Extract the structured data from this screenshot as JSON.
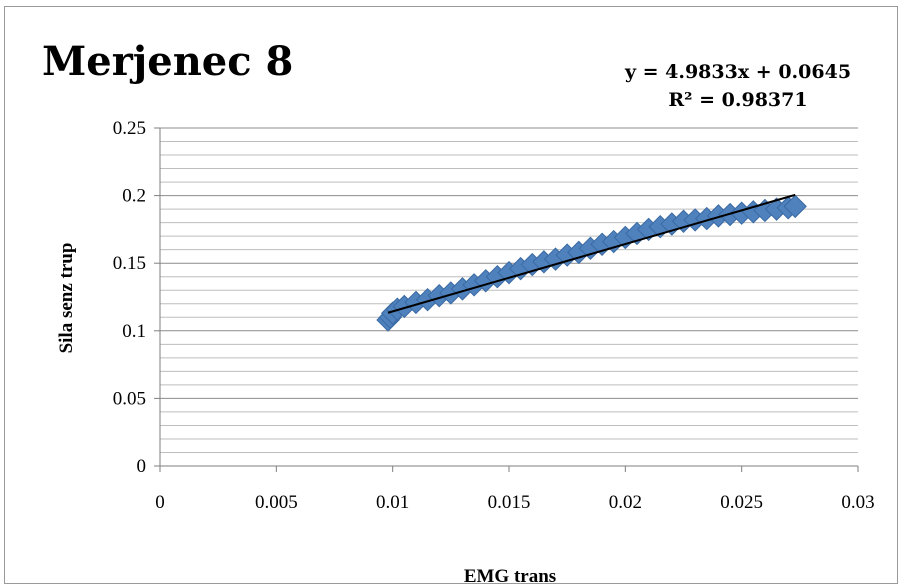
{
  "chart_data": {
    "type": "scatter",
    "title": "Merjenec 8",
    "xlabel": "EMG trans",
    "ylabel": "Sila senz trup",
    "xlim": [
      0,
      0.03
    ],
    "ylim": [
      0,
      0.25
    ],
    "x_ticks": [
      "0",
      "0.005",
      "0.01",
      "0.015",
      "0.02",
      "0.025",
      "0.03"
    ],
    "y_ticks": [
      "0",
      "0.05",
      "0.1",
      "0.15",
      "0.2",
      "0.25"
    ],
    "grid": true,
    "marker_color": "#4f81bd",
    "trendline": {
      "slope": 4.9833,
      "intercept": 0.0645,
      "r2": 0.98371,
      "equation_label": "y = 4.9833x + 0.0645",
      "r2_label": "R² = 0.98371",
      "color": "#000000"
    },
    "series": [
      {
        "points": [
          [
            0.0098,
            0.108
          ],
          [
            0.0099,
            0.11
          ],
          [
            0.01,
            0.113
          ],
          [
            0.0102,
            0.116
          ],
          [
            0.0105,
            0.118
          ],
          [
            0.011,
            0.121
          ],
          [
            0.0115,
            0.123
          ],
          [
            0.012,
            0.126
          ],
          [
            0.0125,
            0.128
          ],
          [
            0.013,
            0.131
          ],
          [
            0.0135,
            0.134
          ],
          [
            0.014,
            0.137
          ],
          [
            0.0145,
            0.14
          ],
          [
            0.015,
            0.143
          ],
          [
            0.0155,
            0.146
          ],
          [
            0.016,
            0.149
          ],
          [
            0.0165,
            0.151
          ],
          [
            0.017,
            0.153
          ],
          [
            0.0175,
            0.156
          ],
          [
            0.018,
            0.158
          ],
          [
            0.0185,
            0.161
          ],
          [
            0.019,
            0.164
          ],
          [
            0.0195,
            0.166
          ],
          [
            0.02,
            0.169
          ],
          [
            0.0205,
            0.172
          ],
          [
            0.021,
            0.175
          ],
          [
            0.0215,
            0.177
          ],
          [
            0.022,
            0.179
          ],
          [
            0.0225,
            0.181
          ],
          [
            0.023,
            0.182
          ],
          [
            0.0235,
            0.183
          ],
          [
            0.024,
            0.185
          ],
          [
            0.0245,
            0.186
          ],
          [
            0.025,
            0.187
          ],
          [
            0.0255,
            0.188
          ],
          [
            0.026,
            0.189
          ],
          [
            0.0265,
            0.19
          ],
          [
            0.027,
            0.191
          ],
          [
            0.0273,
            0.192
          ]
        ]
      }
    ]
  }
}
